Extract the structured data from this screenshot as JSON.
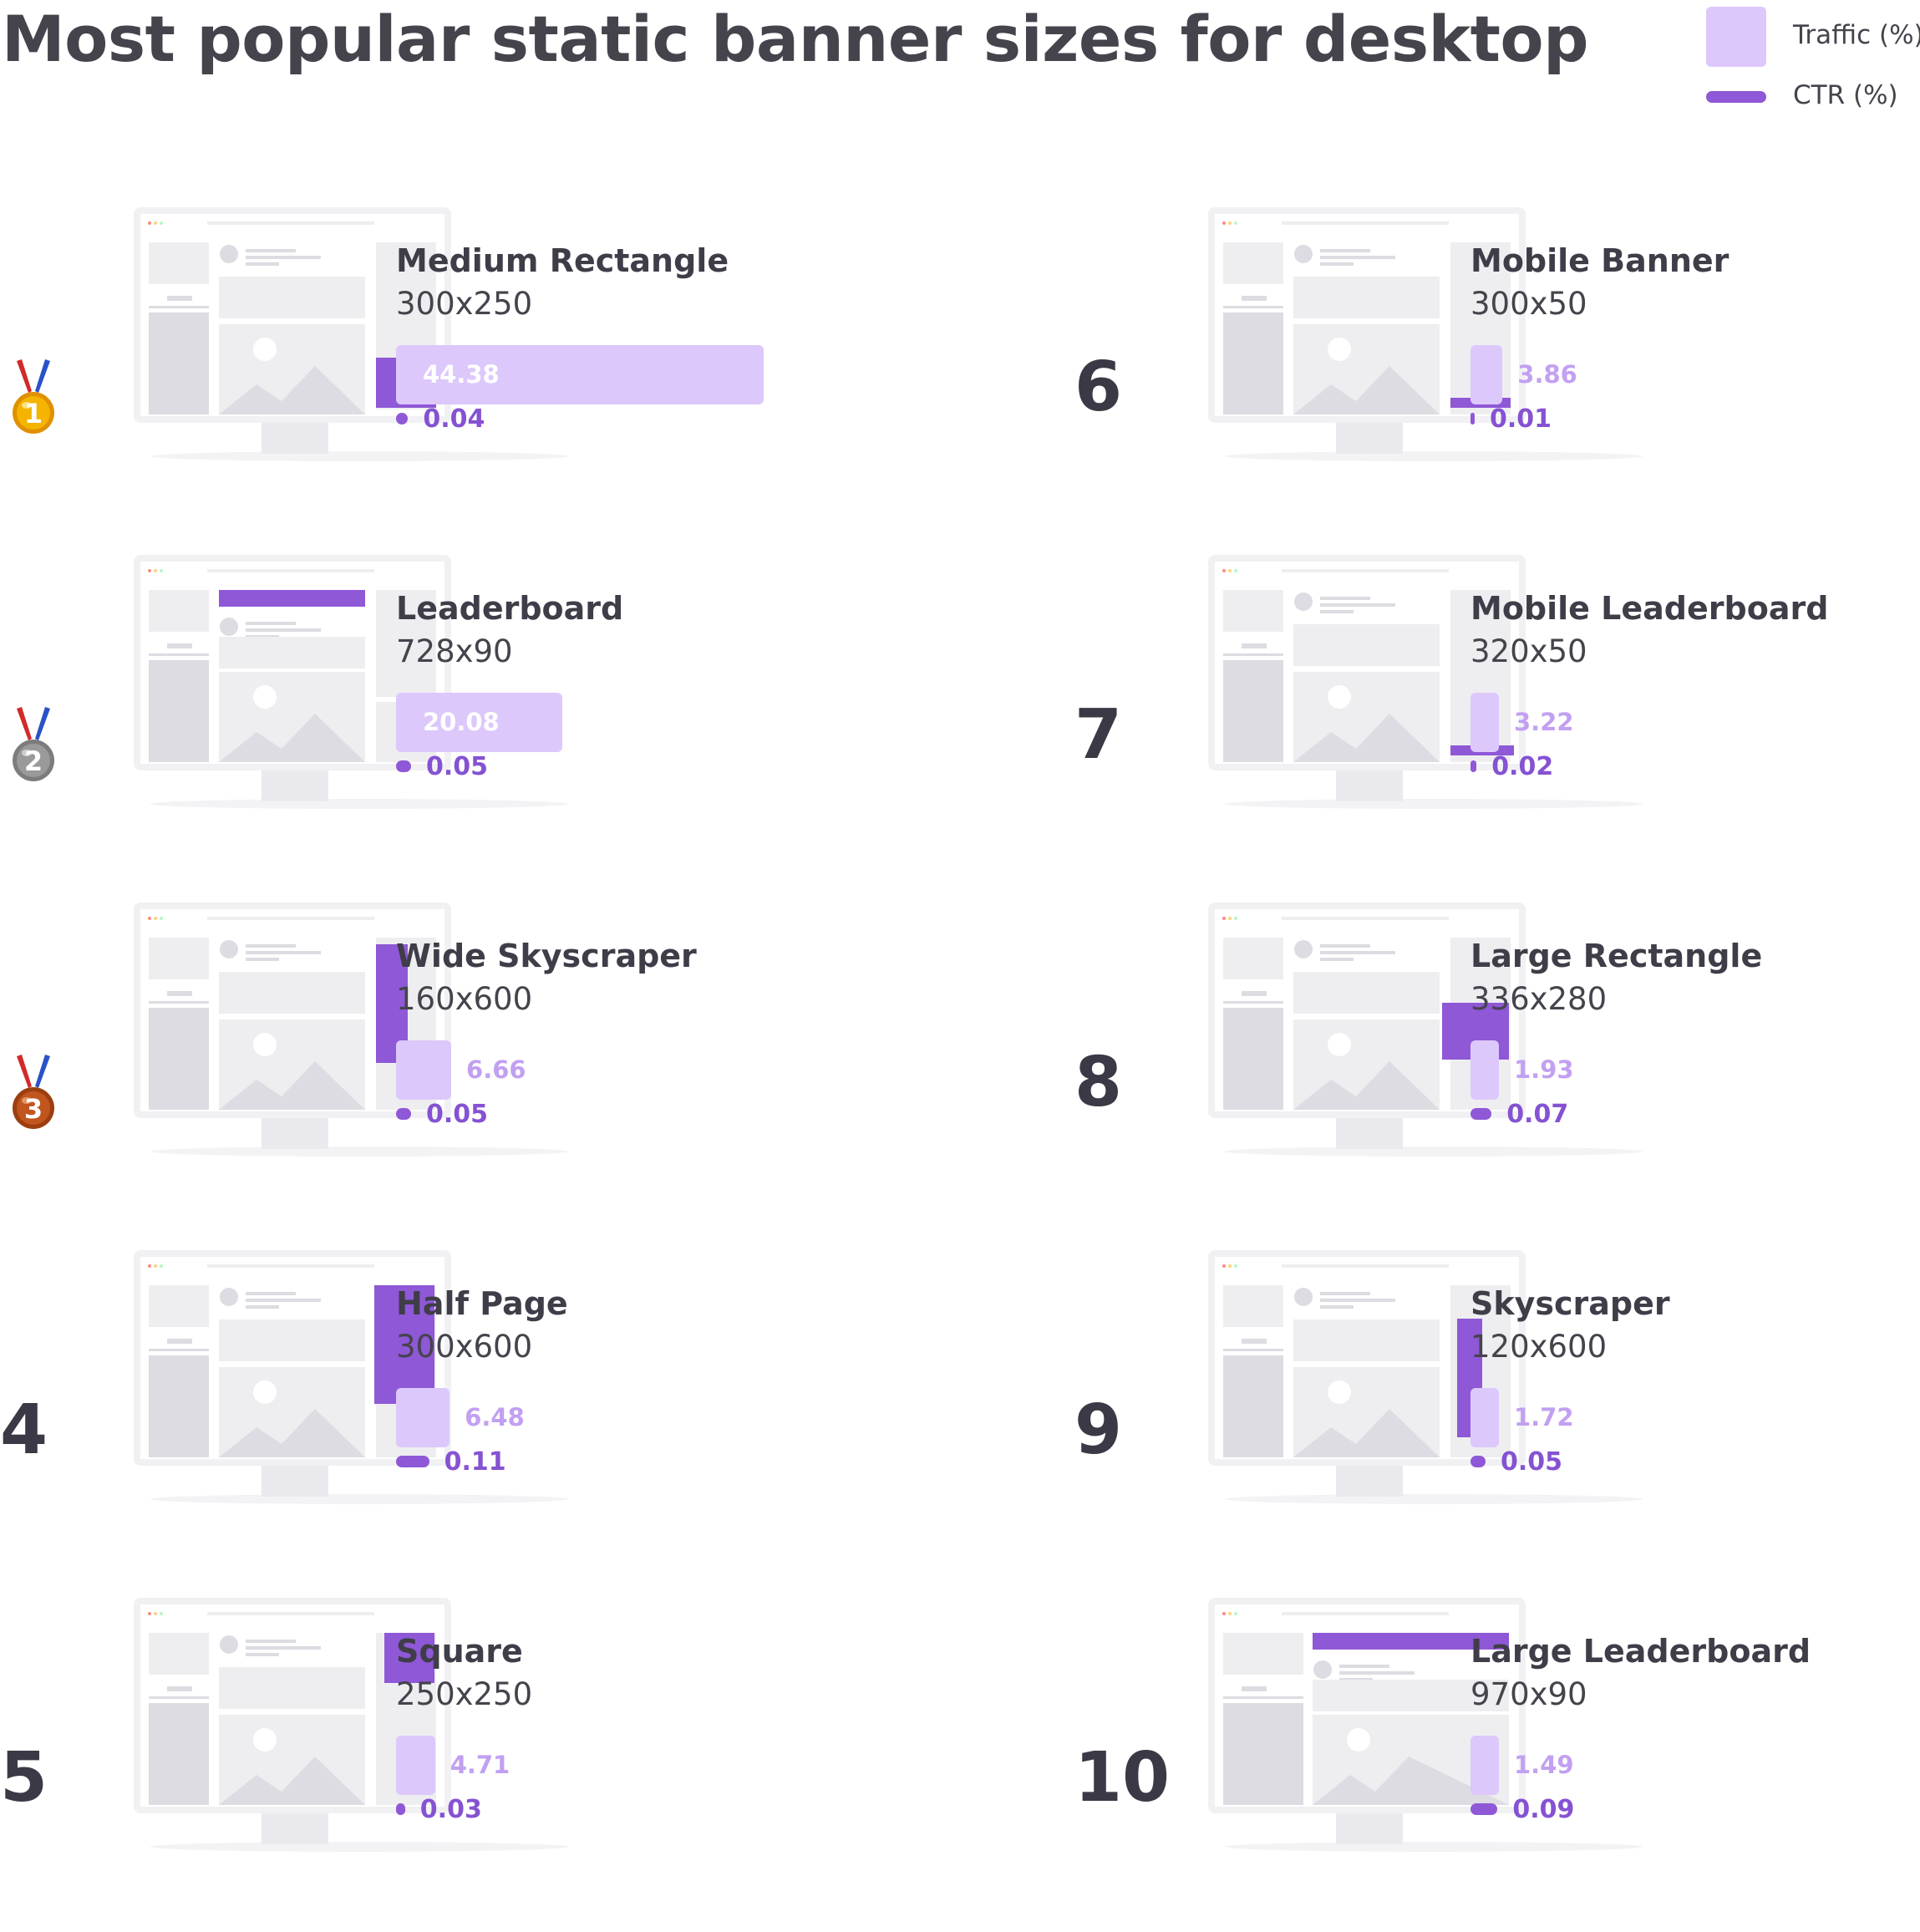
{
  "colors": {
    "traffic": "#dcc8fb",
    "ctr": "#8e58d6",
    "text": "#3f3d48"
  },
  "chart_data": {
    "type": "bar",
    "title": "Most popular static banner sizes for desktop",
    "legend": [
      {
        "name": "Traffic (%)",
        "color": "#dcc8fb",
        "placement": "top-right"
      },
      {
        "name": "CTR (%)",
        "color": "#8e58d6",
        "placement": "top-right"
      }
    ],
    "categories": [
      "Medium Rectangle",
      "Leaderboard",
      "Wide Skyscraper",
      "Half Page",
      "Square",
      "Mobile Banner",
      "Mobile Leaderboard",
      "Large Rectangle",
      "Skyscraper",
      "Large Leaderboard"
    ],
    "series": [
      {
        "name": "Traffic (%)",
        "values": [
          44.38,
          20.08,
          6.66,
          6.48,
          4.71,
          3.86,
          3.22,
          1.93,
          1.72,
          1.49
        ]
      },
      {
        "name": "CTR (%)",
        "values": [
          0.04,
          0.05,
          0.05,
          0.11,
          0.03,
          0.01,
          0.02,
          0.07,
          0.05,
          0.09
        ]
      }
    ],
    "items": [
      {
        "rank": "1",
        "medal": "gold-medal-icon",
        "name": "Medium Rectangle",
        "size": "300x250",
        "traffic": 44.38,
        "traffic_label": "44.38",
        "ctr": 0.04,
        "ctr_label": "0.04",
        "ad": "medium-rectangle"
      },
      {
        "rank": "2",
        "medal": "silver-medal-icon",
        "name": "Leaderboard",
        "size": "728x90",
        "traffic": 20.08,
        "traffic_label": "20.08",
        "ctr": 0.05,
        "ctr_label": "0.05",
        "ad": "leaderboard"
      },
      {
        "rank": "3",
        "medal": "bronze-medal-icon",
        "name": "Wide Skyscraper",
        "size": "160x600",
        "traffic": 6.66,
        "traffic_label": "6.66",
        "ctr": 0.05,
        "ctr_label": "0.05",
        "ad": "wide-skyscraper"
      },
      {
        "rank": "4",
        "name": "Half Page",
        "size": "300x600",
        "traffic": 6.48,
        "traffic_label": "6.48",
        "ctr": 0.11,
        "ctr_label": "0.11",
        "ad": "half-page"
      },
      {
        "rank": "5",
        "name": "Square",
        "size": "250x250",
        "traffic": 4.71,
        "traffic_label": "4.71",
        "ctr": 0.03,
        "ctr_label": "0.03",
        "ad": "square"
      },
      {
        "rank": "6",
        "name": "Mobile Banner",
        "size": "300x50",
        "traffic": 3.86,
        "traffic_label": "3.86",
        "ctr": 0.01,
        "ctr_label": "0.01",
        "ad": "mobile-banner"
      },
      {
        "rank": "7",
        "name": "Mobile Leaderboard",
        "size": "320x50",
        "traffic": 3.22,
        "traffic_label": "3.22",
        "ctr": 0.02,
        "ctr_label": "0.02",
        "ad": "mobile-leaderboard"
      },
      {
        "rank": "8",
        "name": "Large Rectangle",
        "size": "336x280",
        "traffic": 1.93,
        "traffic_label": "1.93",
        "ctr": 0.07,
        "ctr_label": "0.07",
        "ad": "large-rectangle"
      },
      {
        "rank": "9",
        "name": "Skyscraper",
        "size": "120x600",
        "traffic": 1.72,
        "traffic_label": "1.72",
        "ctr": 0.05,
        "ctr_label": "0.05",
        "ad": "skyscraper"
      },
      {
        "rank": "10",
        "name": "Large Leaderboard",
        "size": "970x90",
        "traffic": 1.49,
        "traffic_label": "1.49",
        "ctr": 0.09,
        "ctr_label": "0.09",
        "ad": "large-leaderboard"
      }
    ]
  }
}
